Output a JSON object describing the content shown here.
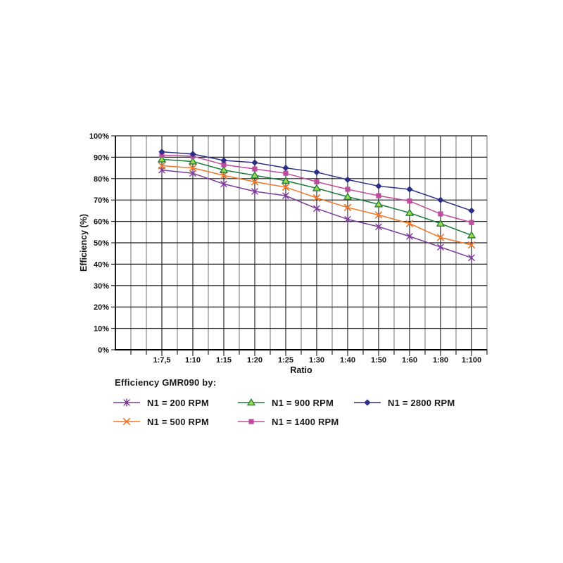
{
  "chart_data": {
    "type": "line",
    "title": "",
    "xlabel": "Ratio",
    "ylabel": "Efficiency (%)",
    "categories": [
      "1:7,5",
      "1:10",
      "1:15",
      "1:20",
      "1:25",
      "1:30",
      "1:40",
      "1:50",
      "1:60",
      "1:80",
      "1:100"
    ],
    "y_tick_labels": [
      "0%",
      "10%",
      "20%",
      "30%",
      "40%",
      "50%",
      "60%",
      "70%",
      "80%",
      "90%",
      "100%"
    ],
    "ylim": [
      0,
      100
    ],
    "y_step": 10,
    "grid": true,
    "series": [
      {
        "name": "N1 = 200 RPM",
        "marker": "star-marker-icon",
        "color": "#7B3B97",
        "marker_fill": "#7B3B97",
        "values": [
          84,
          82.5,
          77.5,
          74,
          72,
          66,
          61,
          57.5,
          53,
          48,
          43
        ]
      },
      {
        "name": "N1 = 500 RPM",
        "marker": "x-marker-icon",
        "color": "#F0772B",
        "marker_fill": "#F0772B",
        "values": [
          86,
          85,
          81.5,
          78.5,
          76,
          71,
          66.5,
          63,
          59,
          52.5,
          49
        ]
      },
      {
        "name": "N1 = 900 RPM",
        "marker": "triangle-marker-icon",
        "color": "#1E7A3C",
        "marker_fill": "#9BD84E",
        "values": [
          89,
          88,
          84,
          81.5,
          79,
          75.5,
          71.5,
          68,
          64,
          59,
          53.5
        ]
      },
      {
        "name": "N1 = 1400 RPM",
        "marker": "square-marker-icon",
        "color": "#BE4B9E",
        "marker_fill": "#BE4B9E",
        "values": [
          91,
          90.5,
          86.5,
          84.5,
          82.5,
          78.5,
          75,
          72,
          69.5,
          63.5,
          59.5
        ]
      },
      {
        "name": "N1 = 2800 RPM",
        "marker": "diamond-marker-icon",
        "color": "#2D2F87",
        "marker_fill": "#2D2F87",
        "values": [
          92.5,
          91.5,
          88.5,
          87.5,
          85,
          83,
          79.5,
          76.5,
          75,
          70,
          65
        ]
      }
    ],
    "legend": {
      "title": "Efficiency GMR090 by:",
      "position": "below-left",
      "rows": [
        [
          0,
          2,
          4
        ],
        [
          1,
          3
        ]
      ]
    }
  }
}
